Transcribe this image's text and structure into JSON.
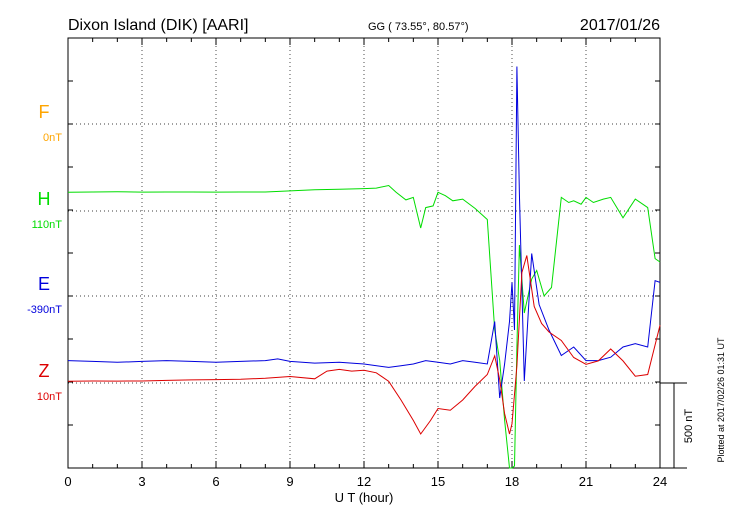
{
  "header": {
    "station": "Dixon Island (DIK)  [AARI]",
    "coords": "GG ( 73.55°,  80.57°)",
    "date": "2017/01/26"
  },
  "side_note": "Plotted at 2017/02/26 01:31  UT",
  "scale_label": "500 nT",
  "colors": {
    "F": "#ffa500",
    "H": "#00dd00",
    "E": "#0000dd",
    "Z": "#dd0000",
    "axis": "#000000"
  },
  "chart_data": {
    "type": "line",
    "xlabel": "U T (hour)",
    "ylabel": "",
    "xlim": [
      0,
      24
    ],
    "xticks": [
      "0",
      "3",
      "6",
      "9",
      "12",
      "15",
      "18",
      "21",
      "24"
    ],
    "grid": true,
    "scale_bar_nT": 500,
    "series": [
      {
        "name": "F",
        "offset_label": "0nT",
        "x": [],
        "y": []
      },
      {
        "name": "H",
        "offset_label": "110nT",
        "x": [
          0,
          1,
          2,
          3,
          4,
          5,
          6,
          7,
          8,
          9,
          10,
          11,
          12,
          12.5,
          13,
          13.3,
          13.7,
          14,
          14.3,
          14.5,
          14.8,
          15,
          15.3,
          15.6,
          16,
          16.5,
          17,
          17.3,
          17.5,
          17.7,
          17.9,
          18.0,
          18.1,
          18.2,
          18.3,
          18.5,
          18.8,
          19,
          19.3,
          19.6,
          20,
          20.3,
          20.5,
          20.8,
          21,
          21.3,
          21.7,
          22,
          22.5,
          23,
          23.5,
          23.8,
          24
        ],
        "y": [
          110,
          112,
          113,
          111,
          112,
          112,
          111,
          112,
          112,
          118,
          125,
          128,
          132,
          135,
          150,
          110,
          65,
          80,
          -100,
          20,
          30,
          110,
          90,
          60,
          70,
          15,
          -50,
          -700,
          -880,
          -1230,
          -1550,
          -1800,
          -1500,
          -800,
          -200,
          -600,
          -400,
          -350,
          -500,
          -450,
          80,
          50,
          60,
          40,
          80,
          50,
          70,
          80,
          -40,
          70,
          20,
          -280,
          -300
        ]
      },
      {
        "name": "E",
        "offset_label": "-390nT",
        "x": [
          0,
          1,
          2,
          3,
          4,
          5,
          6,
          7,
          8,
          8.5,
          9,
          10,
          11,
          12,
          13,
          13.5,
          14,
          14.5,
          15,
          15.5,
          16,
          16.5,
          17,
          17.3,
          17.5,
          17.7,
          17.9,
          18.0,
          18.1,
          18.2,
          18.3,
          18.5,
          18.8,
          19.1,
          19.5,
          20,
          20.5,
          21,
          21.5,
          22,
          22.5,
          23,
          23.5,
          23.8,
          24
        ],
        "y": [
          -380,
          -385,
          -390,
          -385,
          -380,
          -385,
          -390,
          -385,
          -380,
          -370,
          -385,
          -395,
          -390,
          -400,
          -420,
          -410,
          -400,
          -380,
          -390,
          -400,
          -380,
          -390,
          -400,
          -150,
          -600,
          -400,
          -150,
          80,
          -200,
          1350,
          600,
          -500,
          250,
          -50,
          -200,
          -350,
          -300,
          -380,
          -380,
          -360,
          -300,
          -280,
          -300,
          90,
          80
        ]
      },
      {
        "name": "Z",
        "offset_label": "10nT",
        "x": [
          0,
          1,
          2,
          3,
          4,
          5,
          6,
          7,
          8,
          9,
          10,
          10.5,
          11,
          11.5,
          12,
          12.5,
          13,
          13.5,
          14,
          14.3,
          14.7,
          15,
          15.5,
          16,
          16.5,
          17,
          17.3,
          17.5,
          17.7,
          17.9,
          18.0,
          18.2,
          18.4,
          18.6,
          18.9,
          19.2,
          19.5,
          20,
          20.5,
          21,
          21.5,
          22,
          22.5,
          23,
          23.5,
          24
        ],
        "y": [
          10,
          12,
          11,
          12,
          15,
          18,
          20,
          22,
          28,
          38,
          25,
          70,
          80,
          70,
          75,
          60,
          10,
          -100,
          -220,
          -300,
          -220,
          -150,
          -160,
          -100,
          -20,
          50,
          160,
          20,
          -180,
          -300,
          -240,
          100,
          650,
          750,
          450,
          350,
          300,
          250,
          150,
          110,
          130,
          200,
          130,
          40,
          50,
          340
        ]
      }
    ]
  }
}
